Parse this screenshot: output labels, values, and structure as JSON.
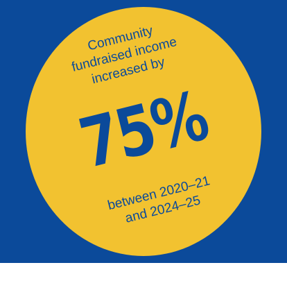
{
  "colors": {
    "background": "#0b4a9a",
    "badge_fill": "#f2c230",
    "text": "#0b4a9a"
  },
  "badge": {
    "intro_lines": [
      "Community",
      "fundraised income",
      "increased by"
    ],
    "figure": "75%",
    "period_lines": [
      "between 2020–21",
      "and 2024–25"
    ]
  }
}
